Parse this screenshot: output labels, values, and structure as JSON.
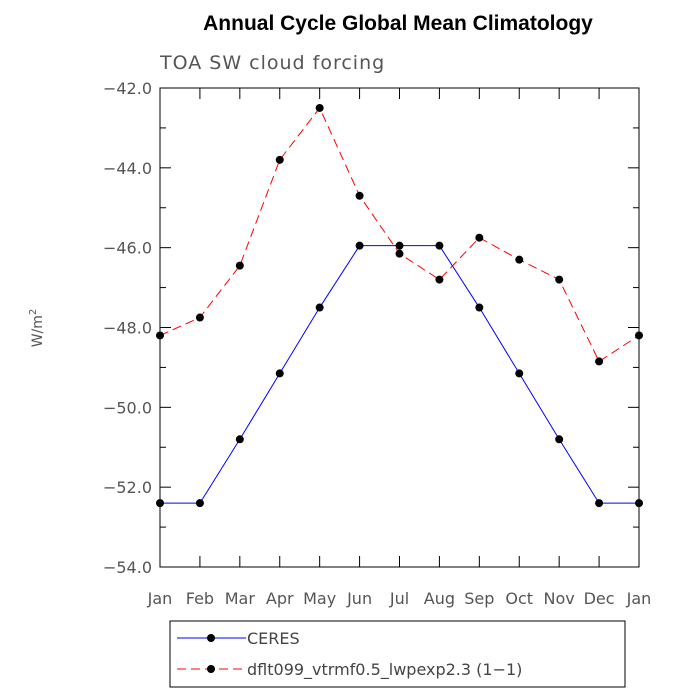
{
  "chart_data": {
    "type": "line",
    "title": "Annual Cycle Global Mean Climatology",
    "subtitle": "TOA SW cloud forcing",
    "ylabel": "W/m",
    "ylabel_sup": "2",
    "xlabel": "",
    "categories": [
      "Jan",
      "Feb",
      "Mar",
      "Apr",
      "May",
      "Jun",
      "Jul",
      "Aug",
      "Sep",
      "Oct",
      "Nov",
      "Dec",
      "Jan"
    ],
    "ylim": [
      -54.0,
      -42.0
    ],
    "yticks": [
      -42.0,
      -44.0,
      -46.0,
      -48.0,
      -50.0,
      -52.0,
      -54.0
    ],
    "ytick_labels": [
      "−42.0",
      "−44.0",
      "−46.0",
      "−48.0",
      "−50.0",
      "−52.0",
      "−54.0"
    ],
    "grid": false,
    "legend_position": "bottom",
    "series": [
      {
        "name": "CERES",
        "color": "#0000ff",
        "dash": "solid",
        "values": [
          -52.4,
          -52.4,
          -50.8,
          -49.15,
          -47.5,
          -45.95,
          -45.95,
          -45.95,
          -47.5,
          -49.15,
          -50.8,
          -52.4,
          -52.4
        ]
      },
      {
        "name": "dflt099_vtrmf0.5_lwpexp2.3 (1−1)",
        "color": "#ff0000",
        "dash": "dashed",
        "values": [
          -48.2,
          -47.75,
          -46.45,
          -43.8,
          -42.5,
          -44.7,
          -46.15,
          -46.8,
          -45.75,
          -46.3,
          -46.8,
          -48.85,
          -48.2
        ]
      }
    ]
  }
}
